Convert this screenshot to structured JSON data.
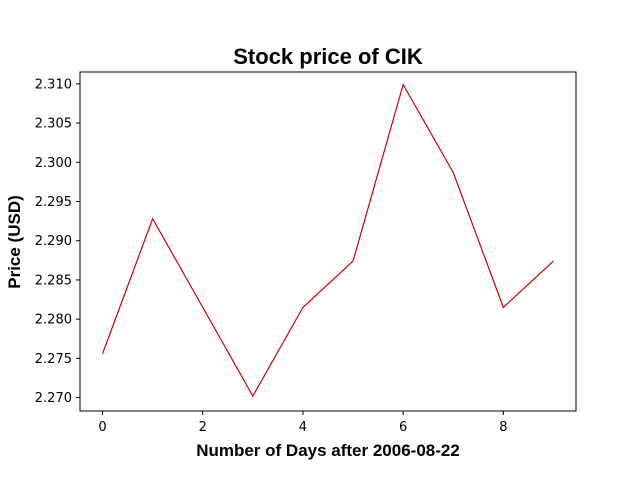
{
  "chart_data": {
    "type": "line",
    "title": "Stock price of CIK",
    "xlabel": "Number of Days after 2006-08-22",
    "ylabel": "Price (USD)",
    "x": [
      0,
      1,
      2,
      3,
      4,
      5,
      6,
      7,
      8,
      9
    ],
    "series": [
      {
        "values": [
          2.2756,
          2.2928,
          2.2815,
          2.2702,
          2.2815,
          2.2874,
          2.3099,
          2.2987,
          2.2815,
          2.2874
        ]
      }
    ],
    "xlim": [
      -0.45,
      9.45
    ],
    "ylim": [
      2.26829,
      2.31151
    ],
    "xticks": [
      0,
      2,
      4,
      6,
      8
    ],
    "yticks": [
      2.27,
      2.275,
      2.28,
      2.285,
      2.29,
      2.295,
      2.3,
      2.305,
      2.31
    ],
    "xtick_labels": [
      "0",
      "2",
      "4",
      "6",
      "8"
    ],
    "ytick_labels": [
      "2.270",
      "2.275",
      "2.280",
      "2.285",
      "2.290",
      "2.295",
      "2.300",
      "2.305",
      "2.310"
    ],
    "grid": false,
    "legend": "none",
    "line_color": "#cc0000"
  }
}
